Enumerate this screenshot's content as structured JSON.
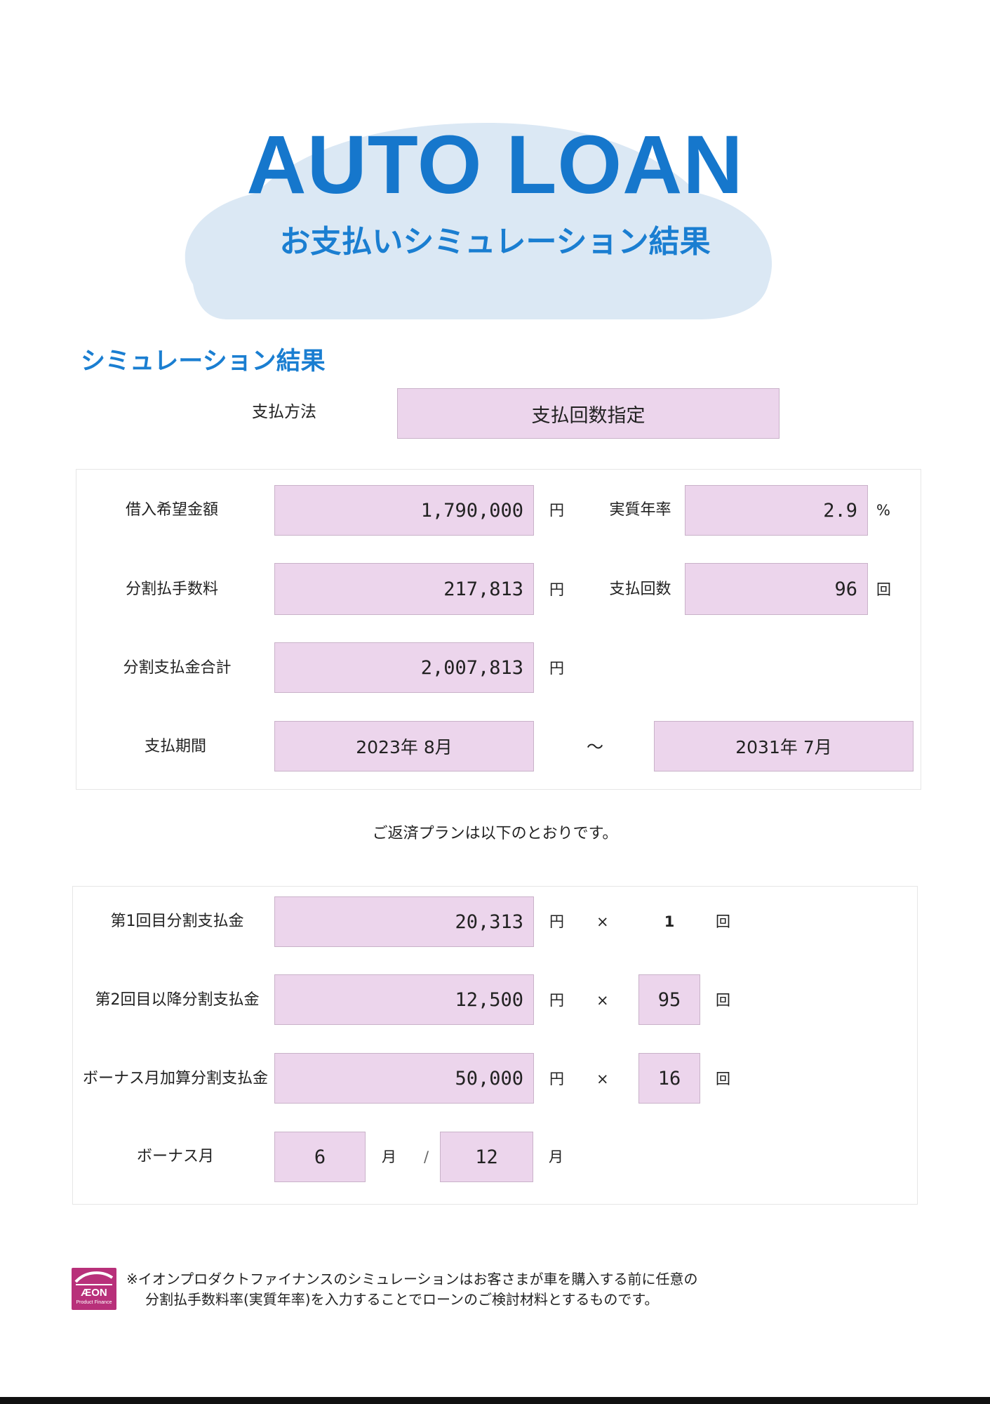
{
  "header": {
    "title": "AUTO LOAN",
    "subtitle": "お支払いシミュレーション結果"
  },
  "section_title": "シミュレーション結果",
  "payment_method": {
    "label": "支払方法",
    "value": "支払回数指定"
  },
  "summary": {
    "loan_amount": {
      "label": "借入希望金額",
      "value": "1,790,000",
      "unit": "円"
    },
    "annual_rate": {
      "label": "実質年率",
      "value": "2.9",
      "unit": "%"
    },
    "installment_fee": {
      "label": "分割払手数料",
      "value": "217,813",
      "unit": "円"
    },
    "payment_count": {
      "label": "支払回数",
      "value": "96",
      "unit": "回"
    },
    "total_payment": {
      "label": "分割支払金合計",
      "value": "2,007,813",
      "unit": "円"
    },
    "period": {
      "label": "支払期間",
      "start": "2023年 8月",
      "separator": "～",
      "end": "2031年 7月"
    }
  },
  "plan_intro": "ご返済プランは以下のとおりです。",
  "plan": {
    "first": {
      "label": "第1回目分割支払金",
      "value": "20,313",
      "unit": "円",
      "times_sign": "×",
      "count": "1",
      "count_unit": "回"
    },
    "second": {
      "label": "第2回目以降分割支払金",
      "value": "12,500",
      "unit": "円",
      "times_sign": "×",
      "count": "95",
      "count_unit": "回"
    },
    "bonus": {
      "label": "ボーナス月加算分割支払金",
      "value": "50,000",
      "unit": "円",
      "times_sign": "×",
      "count": "16",
      "count_unit": "回"
    },
    "bonus_months": {
      "label": "ボーナス月",
      "month1": "6",
      "month1_unit": "月",
      "slash": "/",
      "month2": "12",
      "month2_unit": "月"
    }
  },
  "footer": {
    "logo_text": "ÆON",
    "logo_sub": "Product Finance",
    "note_line1": "※イオンプロダクトファイナンスのシミュレーションはお客さまが車を購入する前に任意の",
    "note_line2": "分割払手数料率(実質年率)を入力することでローンのご検討材料とするものです。"
  },
  "colors": {
    "title_blue": "#1677cc",
    "field_pink": "#ecd5ec",
    "cloud": "#dbe8f4",
    "logo_magenta": "#b8307a"
  }
}
